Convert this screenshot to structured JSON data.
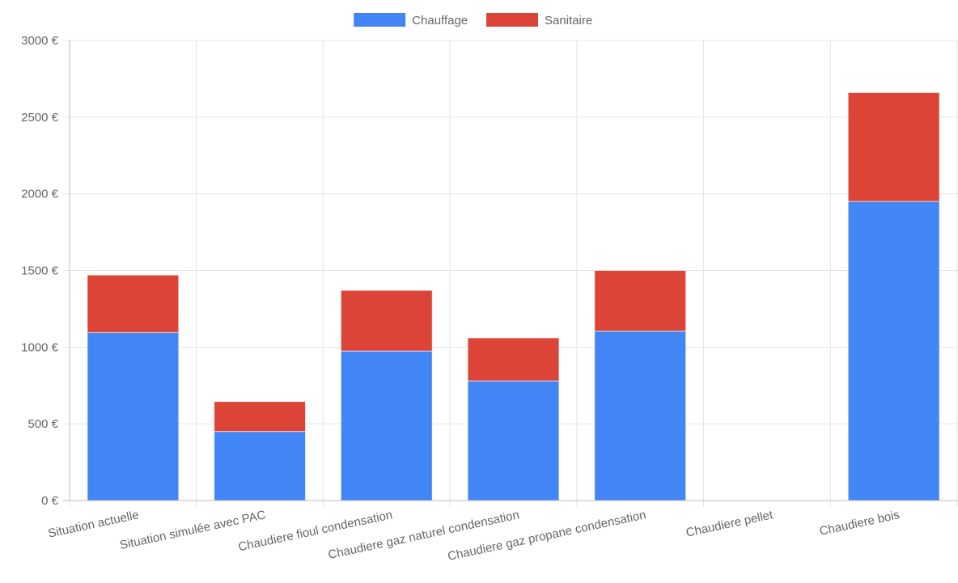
{
  "chart_data": {
    "type": "bar",
    "stacked": true,
    "categories": [
      "Situation actuelle",
      "Situation simulée avec PAC",
      "Chaudiere fioul condensation",
      "Chaudiere gaz naturel condensation",
      "Chaudiere gaz propane condensation",
      "Chaudiere pellet",
      "Chaudiere bois"
    ],
    "series": [
      {
        "name": "Chauffage",
        "color": "#4285f4",
        "values": [
          1095,
          450,
          975,
          780,
          1105,
          0,
          1950
        ]
      },
      {
        "name": "Sanitaire",
        "color": "#db4437",
        "values": [
          375,
          195,
          395,
          280,
          395,
          0,
          710
        ]
      }
    ],
    "ylim": [
      0,
      3000
    ],
    "yticks": [
      0,
      500,
      1000,
      1500,
      2000,
      2500,
      3000
    ],
    "y_tick_labels": [
      "0 €",
      "500 €",
      "1000 €",
      "1500 €",
      "2000 €",
      "2500 €",
      "3000 €"
    ],
    "legend_position": "top",
    "grid": true
  }
}
